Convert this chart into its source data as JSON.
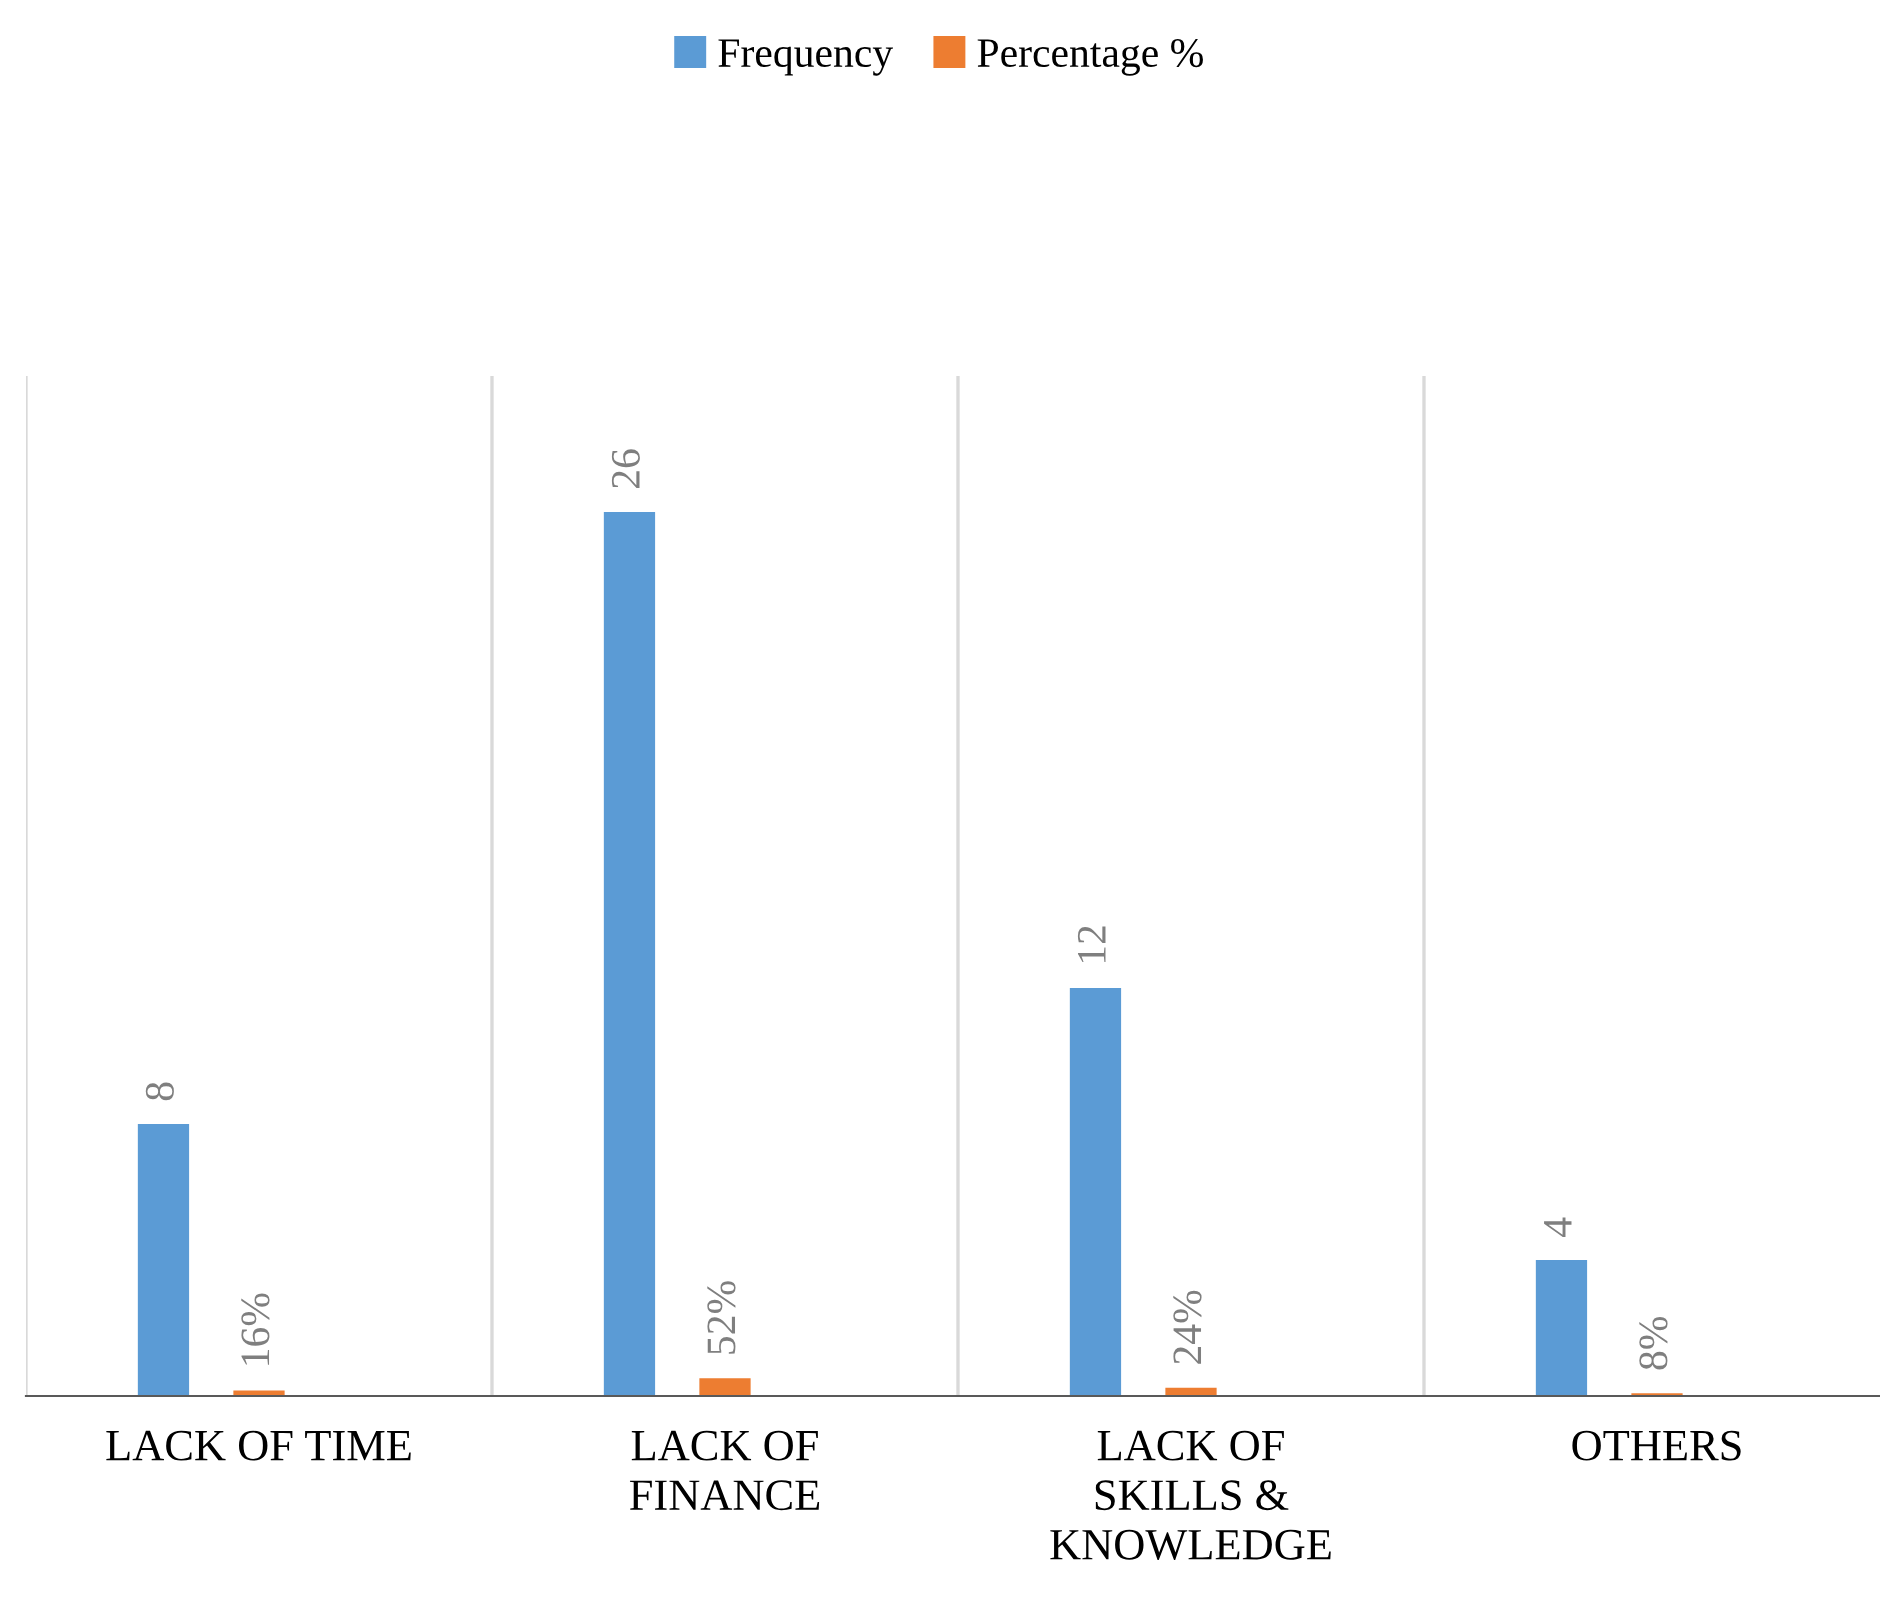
{
  "chart_data": {
    "type": "bar",
    "categories": [
      "LACK OF TIME",
      "LACK OF\nFINANCE",
      "LACK OF\nSKILLS &\nKNOWLEDGE",
      "OTHERS"
    ],
    "series": [
      {
        "name": "Frequency",
        "color": "#5b9bd5",
        "values": [
          8,
          26,
          12,
          4
        ]
      },
      {
        "name": "Percentage %",
        "color": "#ed7d31",
        "values": [
          0.16,
          0.52,
          0.24,
          0.08
        ],
        "value_labels": [
          "16%",
          "52%",
          "24%",
          "8%"
        ]
      }
    ],
    "ylim": [
      0,
      30
    ],
    "data_labels": true,
    "grid": "x",
    "legend": "top",
    "tick_labels": "x"
  }
}
